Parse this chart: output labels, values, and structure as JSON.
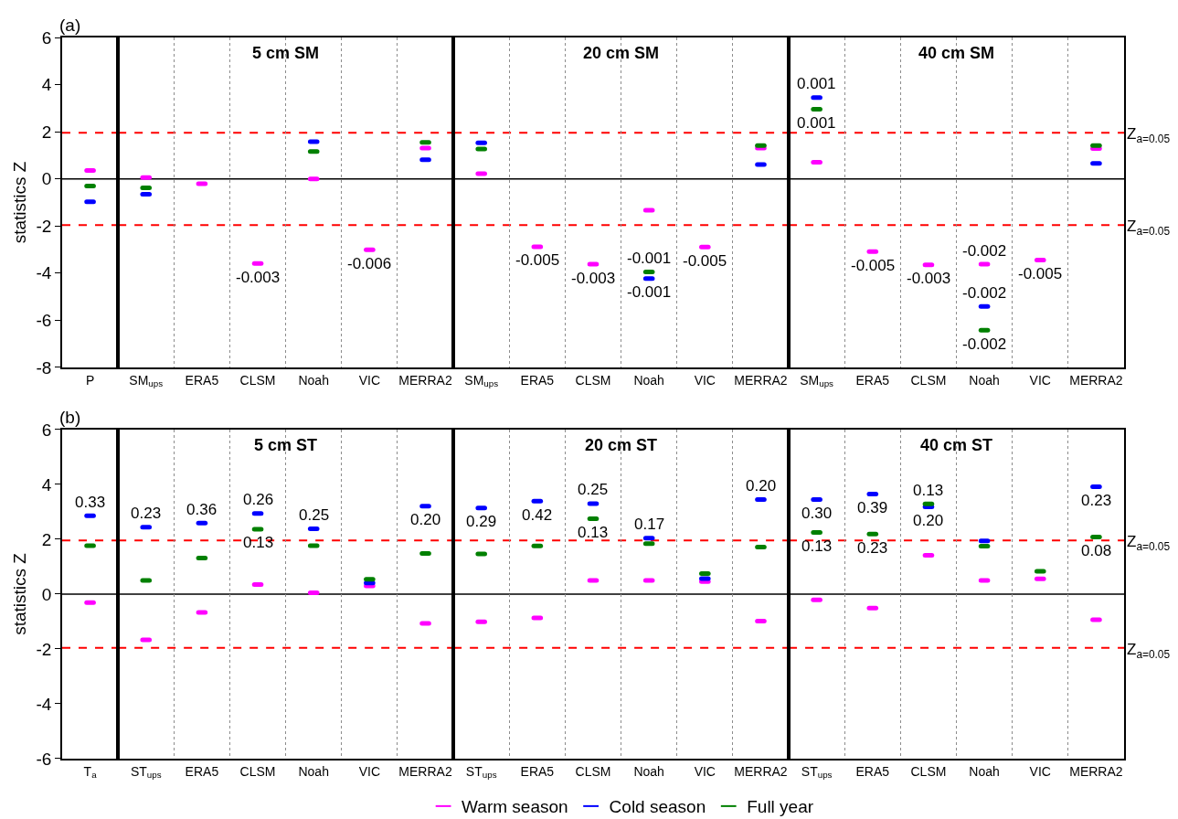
{
  "chart_data": [
    {
      "type": "scatter",
      "annotations": [
        "(a)"
      ],
      "ylabel": "statistics Z",
      "categories": [
        "P"
      ],
      "ylim": [
        -8,
        6
      ],
      "yticks": [
        -8,
        -6,
        -4,
        -2,
        0,
        2,
        4,
        6
      ],
      "series": [
        {
          "color": "#ff00ff",
          "values": [
            0.36
          ]
        },
        {
          "color": "#0000ff",
          "values": [
            -0.97
          ]
        },
        {
          "color": "#008000",
          "values": [
            -0.3
          ]
        }
      ],
      "ref_lines": [
        {
          "axis": "y",
          "value": 0,
          "color": "#000000",
          "line_style": "solid"
        },
        {
          "axis": "y",
          "value": 1.96,
          "color": "#ff0000",
          "line_style": "dashed"
        },
        {
          "axis": "y",
          "value": -1.96,
          "color": "#ff0000",
          "line_style": "dashed"
        }
      ]
    },
    {
      "type": "scatter",
      "title": "5 cm SM",
      "categories": [
        "SM$_{ups}$",
        "ERA5",
        "CLSM",
        "Noah",
        "VIC",
        "MERRA2"
      ],
      "ylim": [
        -8,
        6
      ],
      "tick_labels": "x",
      "grid": "x",
      "series": [
        {
          "color": "#ff00ff",
          "values": [
            0.06,
            -0.21,
            -3.59,
            0.0,
            -3.01,
            1.31
          ]
        },
        {
          "color": "#0000ff",
          "values": [
            -0.65,
            null,
            null,
            1.58,
            null,
            0.81
          ]
        },
        {
          "color": "#008000",
          "values": [
            -0.38,
            null,
            null,
            1.16,
            null,
            1.55
          ]
        }
      ],
      "annotations": [
        {
          "text": "-0.003",
          "x": "CLSM",
          "y": -3.59
        },
        {
          "text": "-0.006",
          "x": "VIC",
          "y": -3.01
        }
      ],
      "ref_lines": [
        {
          "axis": "y",
          "value": 0,
          "color": "#000000",
          "line_style": "solid"
        },
        {
          "axis": "y",
          "value": 1.96,
          "color": "#ff0000",
          "line_style": "dashed"
        },
        {
          "axis": "y",
          "value": -1.96,
          "color": "#ff0000",
          "line_style": "dashed"
        }
      ]
    },
    {
      "type": "scatter",
      "title": "20 cm SM",
      "categories": [
        "SM$_{ups}$",
        "ERA5",
        "CLSM",
        "Noah",
        "VIC",
        "MERRA2"
      ],
      "ylim": [
        -8,
        6
      ],
      "tick_labels": "x",
      "grid": "x",
      "series": [
        {
          "color": "#ff00ff",
          "values": [
            0.22,
            -2.88,
            -3.62,
            -1.33,
            -2.89,
            1.31
          ]
        },
        {
          "color": "#0000ff",
          "values": [
            1.53,
            null,
            null,
            -4.23,
            null,
            0.61
          ]
        },
        {
          "color": "#008000",
          "values": [
            1.27,
            null,
            null,
            -3.95,
            null,
            1.41
          ]
        }
      ],
      "annotations": [
        {
          "text": "-0.005",
          "x": "ERA5",
          "y": -2.88
        },
        {
          "text": "-0.003",
          "x": "CLSM",
          "y": -3.62
        },
        {
          "text": "-0.001",
          "x": "Noah",
          "y": -3.95
        },
        {
          "text": "-0.001",
          "x": "Noah",
          "y": -4.23
        },
        {
          "text": "-0.005",
          "x": "VIC",
          "y": -2.89
        }
      ],
      "ref_lines": [
        {
          "axis": "y",
          "value": 0,
          "color": "#000000",
          "line_style": "solid"
        },
        {
          "axis": "y",
          "value": 1.96,
          "color": "#ff0000",
          "line_style": "dashed"
        },
        {
          "axis": "y",
          "value": -1.96,
          "color": "#ff0000",
          "line_style": "dashed"
        }
      ]
    },
    {
      "type": "scatter",
      "title": "40 cm SM",
      "categories": [
        "SM$_{ups}$",
        "ERA5",
        "CLSM",
        "Noah",
        "VIC",
        "MERRA2"
      ],
      "ylim": [
        -8,
        6
      ],
      "tick_labels": "x",
      "grid": "x",
      "series": [
        {
          "color": "#ff00ff",
          "values": [
            0.71,
            -3.09,
            -3.65,
            -3.62,
            -3.44,
            1.29
          ]
        },
        {
          "color": "#0000ff",
          "values": [
            3.45,
            null,
            null,
            -5.41,
            null,
            0.66
          ]
        },
        {
          "color": "#008000",
          "values": [
            2.96,
            null,
            null,
            -6.42,
            null,
            1.41
          ]
        }
      ],
      "annotations": [
        {
          "text": "0.001",
          "x": "SM$_{ups}$",
          "y": 3.45
        },
        {
          "text": "0.001",
          "x": "SM$_{ups}$",
          "y": 2.96
        },
        {
          "text": "-0.005",
          "x": "ERA5",
          "y": -3.09
        },
        {
          "text": "-0.003",
          "x": "CLSM",
          "y": -3.65
        },
        {
          "text": "-0.002",
          "x": "Noah",
          "y": -3.62
        },
        {
          "text": "-0.002",
          "x": "Noah",
          "y": -5.41
        },
        {
          "text": "-0.002",
          "x": "Noah",
          "y": -6.42
        },
        {
          "text": "-0.005",
          "x": "VIC",
          "y": -3.44
        },
        "Z$_{a=0.05}$",
        "Z$_{a=0.05}$"
      ],
      "ref_lines": [
        {
          "axis": "y",
          "value": 0,
          "color": "#000000",
          "line_style": "solid"
        },
        {
          "axis": "y",
          "value": 1.96,
          "color": "#ff0000",
          "line_style": "dashed"
        },
        {
          "axis": "y",
          "value": -1.96,
          "color": "#ff0000",
          "line_style": "dashed"
        }
      ]
    },
    {
      "type": "scatter",
      "annotations": [
        "(b)",
        {
          "text": "0.33",
          "x": "T$_{a}$",
          "y": 2.86
        }
      ],
      "ylabel": "statistics Z",
      "categories": [
        "T$_{a}$"
      ],
      "ylim": [
        -6,
        6
      ],
      "yticks": [
        -6,
        -4,
        -2,
        0,
        2,
        4,
        6
      ],
      "series": [
        {
          "color": "#ff00ff",
          "values": [
            -0.31
          ]
        },
        {
          "color": "#0000ff",
          "values": [
            2.86
          ]
        },
        {
          "color": "#008000",
          "values": [
            1.77
          ]
        }
      ],
      "ref_lines": [
        {
          "axis": "y",
          "value": 0,
          "color": "#000000",
          "line_style": "solid"
        },
        {
          "axis": "y",
          "value": 1.96,
          "color": "#ff0000",
          "line_style": "dashed"
        },
        {
          "axis": "y",
          "value": -1.96,
          "color": "#ff0000",
          "line_style": "dashed"
        }
      ]
    },
    {
      "type": "scatter",
      "title": "5 cm ST",
      "categories": [
        "ST$_{ups}$",
        "ERA5",
        "CLSM",
        "Noah",
        "VIC",
        "MERRA2"
      ],
      "ylim": [
        -6,
        6
      ],
      "tick_labels": "x",
      "grid": "x",
      "series": [
        {
          "color": "#ff00ff",
          "values": [
            -1.67,
            -0.67,
            0.35,
            0.05,
            0.3,
            -1.07
          ]
        },
        {
          "color": "#0000ff",
          "values": [
            2.44,
            2.59,
            2.94,
            2.38,
            0.41,
            3.21
          ]
        },
        {
          "color": "#008000",
          "values": [
            0.5,
            1.32,
            2.37,
            1.77,
            0.54,
            1.48
          ]
        }
      ],
      "annotations": [
        {
          "text": "0.23",
          "x": "ST$_{ups}$",
          "y": 2.44
        },
        {
          "text": "0.36",
          "x": "ERA5",
          "y": 2.59
        },
        {
          "text": "0.26",
          "x": "CLSM",
          "y": 2.94
        },
        {
          "text": "0.13",
          "x": "CLSM",
          "y": 2.37
        },
        {
          "text": "0.25",
          "x": "Noah",
          "y": 2.38
        },
        {
          "text": "0.20",
          "x": "MERRA2",
          "y": 3.21
        }
      ],
      "ref_lines": [
        {
          "axis": "y",
          "value": 0,
          "color": "#000000",
          "line_style": "solid"
        },
        {
          "axis": "y",
          "value": 1.96,
          "color": "#ff0000",
          "line_style": "dashed"
        },
        {
          "axis": "y",
          "value": -1.96,
          "color": "#ff0000",
          "line_style": "dashed"
        }
      ]
    },
    {
      "type": "scatter",
      "title": "20 cm ST",
      "categories": [
        "ST$_{ups}$",
        "ERA5",
        "CLSM",
        "Noah",
        "VIC",
        "MERRA2"
      ],
      "ylim": [
        -6,
        6
      ],
      "tick_labels": "x",
      "grid": "x",
      "series": [
        {
          "color": "#ff00ff",
          "values": [
            -1.01,
            -0.87,
            0.5,
            0.5,
            0.46,
            -0.98
          ]
        },
        {
          "color": "#0000ff",
          "values": [
            3.14,
            3.39,
            3.3,
            2.04,
            0.57,
            3.45
          ]
        },
        {
          "color": "#008000",
          "values": [
            1.47,
            1.76,
            2.75,
            1.84,
            0.75,
            1.72
          ]
        }
      ],
      "annotations": [
        {
          "text": "0.29",
          "x": "ST$_{ups}$",
          "y": 3.14
        },
        {
          "text": "0.42",
          "x": "ERA5",
          "y": 3.39
        },
        {
          "text": "0.25",
          "x": "CLSM",
          "y": 3.3
        },
        {
          "text": "0.13",
          "x": "CLSM",
          "y": 2.75
        },
        {
          "text": "0.17",
          "x": "Noah",
          "y": 2.04
        },
        {
          "text": "0.20",
          "x": "MERRA2",
          "y": 3.45
        }
      ],
      "ref_lines": [
        {
          "axis": "y",
          "value": 0,
          "color": "#000000",
          "line_style": "solid"
        },
        {
          "axis": "y",
          "value": 1.96,
          "color": "#ff0000",
          "line_style": "dashed"
        },
        {
          "axis": "y",
          "value": -1.96,
          "color": "#ff0000",
          "line_style": "dashed"
        }
      ]
    },
    {
      "type": "scatter",
      "title": "40 cm ST",
      "categories": [
        "ST$_{ups}$",
        "ERA5",
        "CLSM",
        "Noah",
        "VIC",
        "MERRA2"
      ],
      "ylim": [
        -6,
        6
      ],
      "tick_labels": "x",
      "grid": "x",
      "legend": "bottom",
      "series": [
        {
          "name": "Warm season",
          "color": "#ff00ff",
          "values": [
            -0.21,
            -0.51,
            1.42,
            0.5,
            0.56,
            -0.93
          ]
        },
        {
          "name": "Cold season",
          "color": "#0000ff",
          "values": [
            3.45,
            3.65,
            3.18,
            1.94,
            null,
            3.92
          ]
        },
        {
          "name": "Full year",
          "color": "#008000",
          "values": [
            2.25,
            2.19,
            3.29,
            1.75,
            0.83,
            2.08
          ]
        }
      ],
      "annotations": [
        {
          "text": "0.30",
          "x": "ST$_{ups}$",
          "y": 3.45
        },
        {
          "text": "0.13",
          "x": "ST$_{ups}$",
          "y": 2.25
        },
        {
          "text": "0.39",
          "x": "ERA5",
          "y": 3.65
        },
        {
          "text": "0.23",
          "x": "ERA5",
          "y": 2.19
        },
        {
          "text": "0.13",
          "x": "CLSM",
          "y": 3.29
        },
        {
          "text": "0.20",
          "x": "CLSM",
          "y": 3.18
        },
        {
          "text": "0.23",
          "x": "MERRA2",
          "y": 3.92
        },
        {
          "text": "0.08",
          "x": "MERRA2",
          "y": 2.08
        },
        "Z$_{a=0.05}$",
        "Z$_{a=0.05}$"
      ],
      "ref_lines": [
        {
          "axis": "y",
          "value": 0,
          "color": "#000000",
          "line_style": "solid"
        },
        {
          "axis": "y",
          "value": 1.96,
          "color": "#ff0000",
          "line_style": "dashed"
        },
        {
          "axis": "y",
          "value": -1.96,
          "color": "#ff0000",
          "line_style": "dashed"
        }
      ]
    }
  ]
}
